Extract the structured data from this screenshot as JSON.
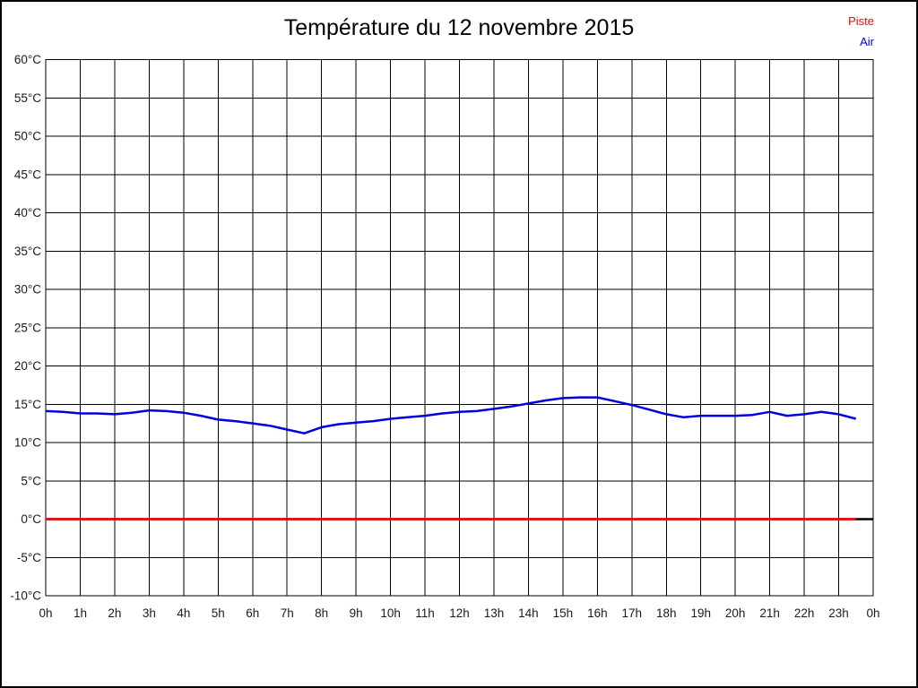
{
  "window": {
    "background": "#ffffff",
    "border_color": "#000000"
  },
  "legend": {
    "position": "top-right",
    "items": [
      {
        "label": "Piste",
        "color": "#ff0000"
      },
      {
        "label": "Air",
        "color": "#0000dd"
      }
    ]
  },
  "chart_data": {
    "type": "line",
    "title": "Température du 12 novembre 2015",
    "xlabel": "",
    "ylabel": "",
    "xlim": [
      0,
      24
    ],
    "ylim": [
      -10,
      60
    ],
    "grid": true,
    "x_tick_values": [
      0,
      1,
      2,
      3,
      4,
      5,
      6,
      7,
      8,
      9,
      10,
      11,
      12,
      13,
      14,
      15,
      16,
      17,
      18,
      19,
      20,
      21,
      22,
      23,
      24
    ],
    "x_tick_labels": [
      "0h",
      "1h",
      "2h",
      "3h",
      "4h",
      "5h",
      "6h",
      "7h",
      "8h",
      "9h",
      "10h",
      "11h",
      "12h",
      "13h",
      "14h",
      "15h",
      "16h",
      "17h",
      "18h",
      "19h",
      "20h",
      "21h",
      "22h",
      "23h",
      "0h"
    ],
    "y_tick_values": [
      60,
      55,
      50,
      45,
      40,
      35,
      30,
      25,
      20,
      15,
      10,
      5,
      0,
      -5,
      -10
    ],
    "y_tick_labels": [
      "60°C",
      "55°C",
      "50°C",
      "45°C",
      "40°C",
      "35°C",
      "30°C",
      "25°C",
      "20°C",
      "15°C",
      "10°C",
      "5°C",
      "0°C",
      "-5°C",
      "-10°C"
    ],
    "zero_line": {
      "value": 0,
      "color": "#000000",
      "x_range": [
        0,
        24
      ]
    },
    "series": [
      {
        "name": "Piste",
        "color": "#ff0000",
        "x": [
          0,
          23.5
        ],
        "values": [
          0,
          0
        ]
      },
      {
        "name": "Air",
        "color": "#0000dd",
        "x": [
          0,
          0.5,
          1,
          1.5,
          2,
          2.5,
          3,
          3.5,
          4,
          4.5,
          5,
          5.5,
          6,
          6.5,
          7,
          7.5,
          8,
          8.5,
          9,
          9.5,
          10,
          10.5,
          11,
          11.5,
          12,
          12.5,
          13,
          13.5,
          14,
          14.5,
          15,
          15.5,
          16,
          16.5,
          17,
          17.5,
          18,
          18.5,
          19,
          19.5,
          20,
          20.5,
          21,
          21.5,
          22,
          22.5,
          23,
          23.5
        ],
        "values": [
          14.1,
          14.0,
          13.8,
          13.8,
          13.7,
          13.9,
          14.2,
          14.1,
          13.9,
          13.5,
          13.0,
          12.8,
          12.5,
          12.2,
          11.7,
          11.2,
          12.0,
          12.4,
          12.6,
          12.8,
          13.1,
          13.3,
          13.5,
          13.8,
          14.0,
          14.1,
          14.4,
          14.7,
          15.1,
          15.5,
          15.8,
          15.9,
          15.9,
          15.4,
          14.9,
          14.3,
          13.7,
          13.3,
          13.5,
          13.5,
          13.5,
          13.6,
          14.0,
          13.5,
          13.7,
          14.0,
          13.7,
          13.1
        ]
      }
    ]
  }
}
